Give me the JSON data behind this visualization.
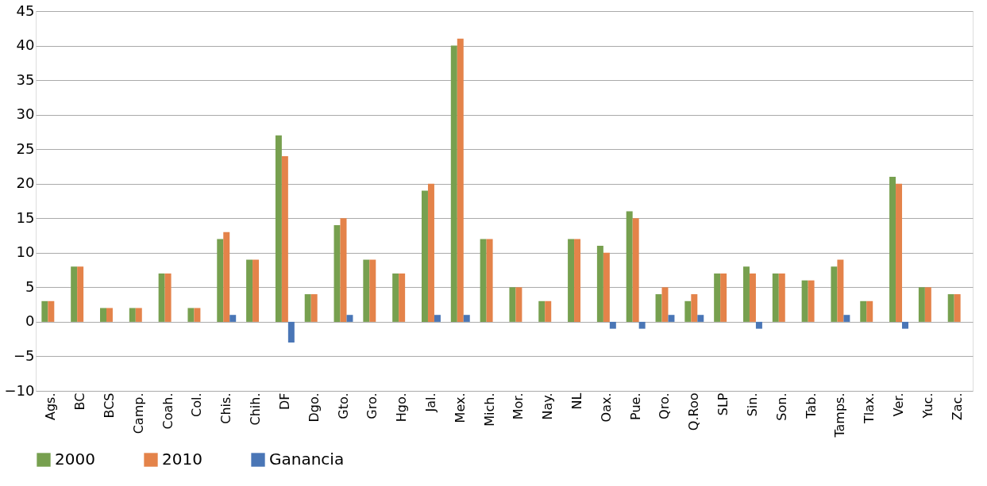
{
  "chart_data": {
    "type": "bar",
    "categories": [
      "Ags.",
      "BC",
      "BCS",
      "Camp.",
      "Coah.",
      "Col.",
      "Chis.",
      "Chih.",
      "DF",
      "Dgo.",
      "Gto.",
      "Gro.",
      "Hgo.",
      "Jal.",
      "Mex.",
      "Mich.",
      "Mor.",
      "Nay.",
      "NL",
      "Oax.",
      "Pue.",
      "Qro.",
      "Q.Roo",
      "SLP",
      "Sin.",
      "Son.",
      "Tab.",
      "Tamps.",
      "Tlax.",
      "Ver.",
      "Yuc.",
      "Zac."
    ],
    "series": [
      {
        "name": "2000",
        "color": "#77a04f",
        "values": [
          3,
          8,
          2,
          2,
          7,
          2,
          12,
          9,
          27,
          4,
          14,
          9,
          7,
          19,
          40,
          12,
          5,
          3,
          12,
          11,
          16,
          4,
          3,
          7,
          8,
          7,
          6,
          8,
          3,
          21,
          5,
          4
        ]
      },
      {
        "name": "2010",
        "color": "#e4834a",
        "values": [
          3,
          8,
          2,
          2,
          7,
          2,
          13,
          9,
          24,
          4,
          15,
          9,
          7,
          20,
          41,
          12,
          5,
          3,
          12,
          10,
          15,
          5,
          4,
          7,
          7,
          7,
          6,
          9,
          3,
          20,
          5,
          4
        ]
      },
      {
        "name": "Ganancia",
        "color": "#4a76b6",
        "values": [
          0,
          0,
          0,
          0,
          0,
          0,
          1,
          0,
          -3,
          0,
          1,
          0,
          0,
          1,
          1,
          0,
          0,
          0,
          0,
          -1,
          -1,
          1,
          1,
          0,
          -1,
          0,
          0,
          1,
          0,
          -1,
          0,
          0
        ]
      }
    ],
    "ylim": [
      -10,
      45
    ],
    "yticks": [
      -10,
      -5,
      0,
      5,
      10,
      15,
      20,
      25,
      30,
      35,
      40,
      45
    ],
    "grid": "y",
    "legend": "bottom"
  }
}
